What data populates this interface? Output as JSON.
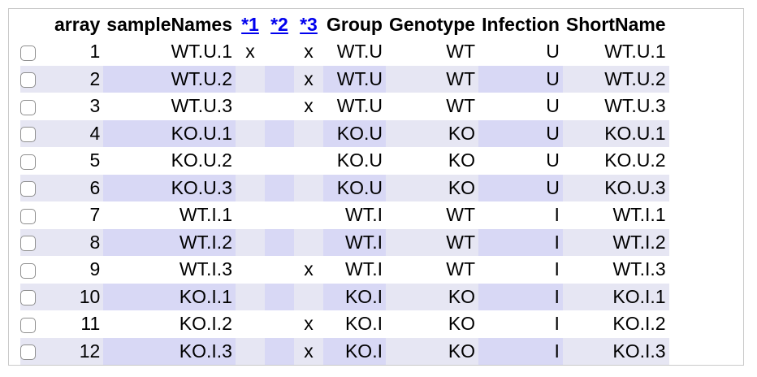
{
  "headers": {
    "checkbox": "",
    "array": "array",
    "sampleNames": "sampleNames",
    "star1": "*1",
    "star2": "*2",
    "star3": "*3",
    "group": "Group",
    "genotype": "Genotype",
    "infection": "Infection",
    "shortName": "ShortName"
  },
  "rows": [
    {
      "array": "1",
      "sampleName": "WT.U.1",
      "s1": "x",
      "s2": "",
      "s3": "x",
      "group": "WT.U",
      "genotype": "WT",
      "infection": "U",
      "shortName": "WT.U.1",
      "checked": false
    },
    {
      "array": "2",
      "sampleName": "WT.U.2",
      "s1": "",
      "s2": "",
      "s3": "x",
      "group": "WT.U",
      "genotype": "WT",
      "infection": "U",
      "shortName": "WT.U.2",
      "checked": false
    },
    {
      "array": "3",
      "sampleName": "WT.U.3",
      "s1": "",
      "s2": "",
      "s3": "x",
      "group": "WT.U",
      "genotype": "WT",
      "infection": "U",
      "shortName": "WT.U.3",
      "checked": false
    },
    {
      "array": "4",
      "sampleName": "KO.U.1",
      "s1": "",
      "s2": "",
      "s3": "",
      "group": "KO.U",
      "genotype": "KO",
      "infection": "U",
      "shortName": "KO.U.1",
      "checked": false
    },
    {
      "array": "5",
      "sampleName": "KO.U.2",
      "s1": "",
      "s2": "",
      "s3": "",
      "group": "KO.U",
      "genotype": "KO",
      "infection": "U",
      "shortName": "KO.U.2",
      "checked": false
    },
    {
      "array": "6",
      "sampleName": "KO.U.3",
      "s1": "",
      "s2": "",
      "s3": "",
      "group": "KO.U",
      "genotype": "KO",
      "infection": "U",
      "shortName": "KO.U.3",
      "checked": false
    },
    {
      "array": "7",
      "sampleName": "WT.I.1",
      "s1": "",
      "s2": "",
      "s3": "",
      "group": "WT.I",
      "genotype": "WT",
      "infection": "I",
      "shortName": "WT.I.1",
      "checked": false
    },
    {
      "array": "8",
      "sampleName": "WT.I.2",
      "s1": "",
      "s2": "",
      "s3": "",
      "group": "WT.I",
      "genotype": "WT",
      "infection": "I",
      "shortName": "WT.I.2",
      "checked": false
    },
    {
      "array": "9",
      "sampleName": "WT.I.3",
      "s1": "",
      "s2": "",
      "s3": "x",
      "group": "WT.I",
      "genotype": "WT",
      "infection": "I",
      "shortName": "WT.I.3",
      "checked": false
    },
    {
      "array": "10",
      "sampleName": "KO.I.1",
      "s1": "",
      "s2": "",
      "s3": "",
      "group": "KO.I",
      "genotype": "KO",
      "infection": "I",
      "shortName": "KO.I.1",
      "checked": false
    },
    {
      "array": "11",
      "sampleName": "KO.I.2",
      "s1": "",
      "s2": "",
      "s3": "x",
      "group": "KO.I",
      "genotype": "KO",
      "infection": "I",
      "shortName": "KO.I.2",
      "checked": false
    },
    {
      "array": "12",
      "sampleName": "KO.I.3",
      "s1": "",
      "s2": "",
      "s3": "x",
      "group": "KO.I",
      "genotype": "KO",
      "infection": "I",
      "shortName": "KO.I.3",
      "checked": false
    }
  ],
  "colors": {
    "alt_row_shade": "#d8d8f5",
    "alt_row_light": "#e6e6f3",
    "link": "#0000ee"
  }
}
